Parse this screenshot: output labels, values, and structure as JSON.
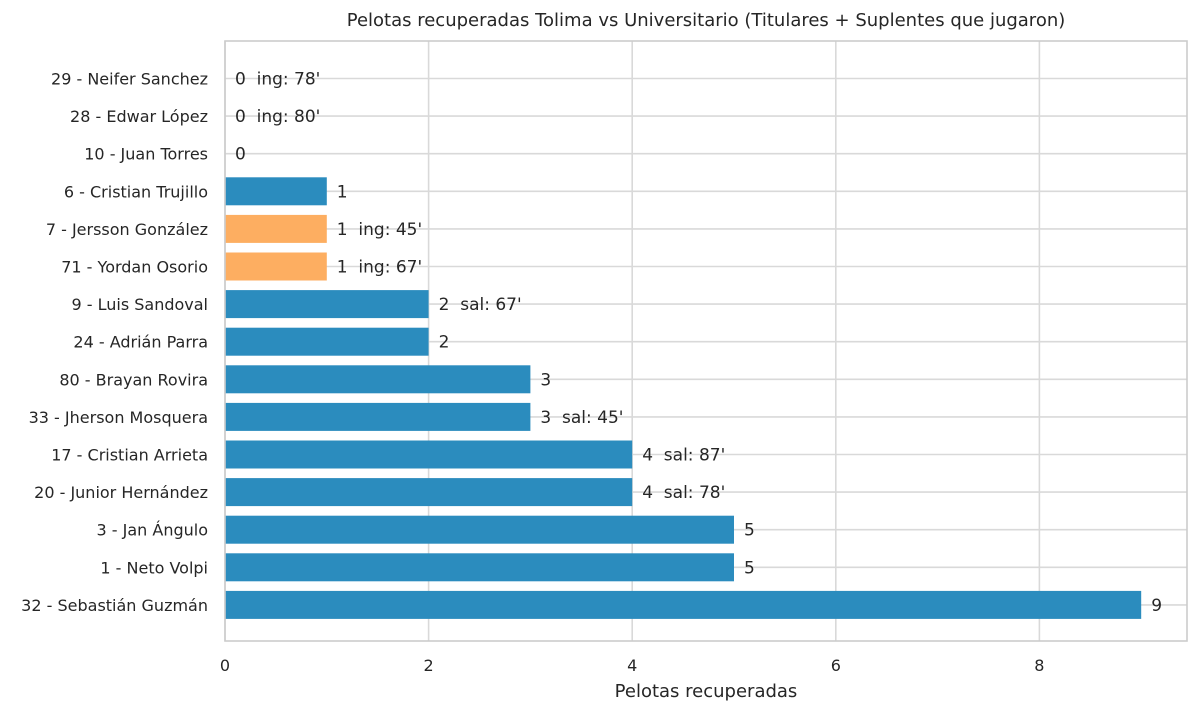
{
  "chart_data": {
    "type": "bar",
    "orientation": "horizontal",
    "title": "Pelotas recuperadas Tolima vs Universitario (Titulares + Suplentes que jugaron)",
    "xlabel": "Pelotas recuperadas",
    "ylabel": "",
    "xlim": [
      0,
      9.45
    ],
    "xticks": [
      0,
      2,
      4,
      6,
      8
    ],
    "grid": true,
    "legend": "none",
    "colors": {
      "starter": "#2b8cbe",
      "substitute": "#fdae61"
    },
    "bars": [
      {
        "label": "29 - Neifer Sanchez",
        "value": 0,
        "role": "substitute",
        "note": "ing: 78'"
      },
      {
        "label": "28 - Edwar López",
        "value": 0,
        "role": "substitute",
        "note": "ing: 80'"
      },
      {
        "label": "10 - Juan Torres",
        "value": 0,
        "role": "starter",
        "note": ""
      },
      {
        "label": "6 - Cristian Trujillo",
        "value": 1,
        "role": "starter",
        "note": ""
      },
      {
        "label": "7 - Jersson González",
        "value": 1,
        "role": "substitute",
        "note": "ing: 45'"
      },
      {
        "label": "71 - Yordan Osorio",
        "value": 1,
        "role": "substitute",
        "note": "ing: 67'"
      },
      {
        "label": "9 - Luis Sandoval",
        "value": 2,
        "role": "starter",
        "note": "sal: 67'"
      },
      {
        "label": "24 - Adrián Parra",
        "value": 2,
        "role": "starter",
        "note": ""
      },
      {
        "label": "80 - Brayan Rovira",
        "value": 3,
        "role": "starter",
        "note": ""
      },
      {
        "label": "33 - Jherson Mosquera",
        "value": 3,
        "role": "starter",
        "note": "sal: 45'"
      },
      {
        "label": "17 - Cristian Arrieta",
        "value": 4,
        "role": "starter",
        "note": "sal: 87'"
      },
      {
        "label": "20 - Junior Hernández",
        "value": 4,
        "role": "starter",
        "note": "sal: 78'"
      },
      {
        "label": "3 - Jan Ángulo",
        "value": 5,
        "role": "starter",
        "note": ""
      },
      {
        "label": "1 - Neto Volpi",
        "value": 5,
        "role": "starter",
        "note": ""
      },
      {
        "label": "32 - Sebastián Guzmán",
        "value": 9,
        "role": "starter",
        "note": ""
      }
    ]
  }
}
